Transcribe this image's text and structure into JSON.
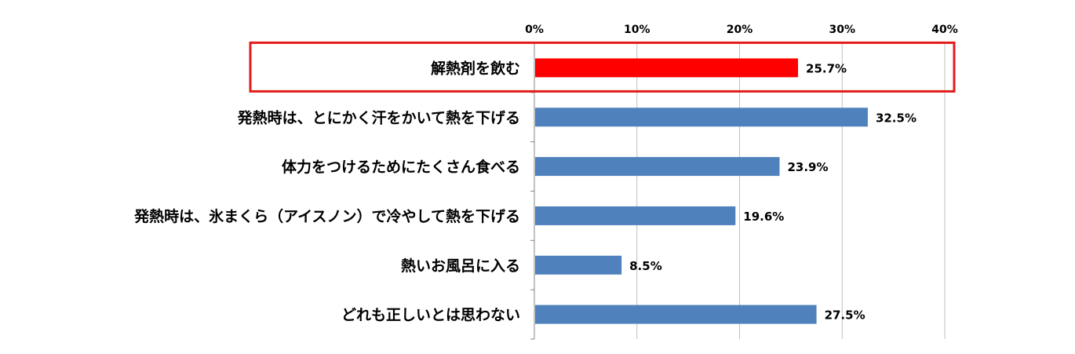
{
  "chart_data": {
    "type": "bar",
    "orientation": "horizontal",
    "title": "",
    "xlabel": "",
    "ylabel": "",
    "xlim": [
      0,
      40
    ],
    "ticks": [
      "0%",
      "10%",
      "20%",
      "30%",
      "40%"
    ],
    "tick_values": [
      0,
      10,
      20,
      30,
      40
    ],
    "grid": true,
    "categories": [
      "解熱剤を飲む",
      "発熱時は、とにかく汗をかいて熱を下げる",
      "体力をつけるためにたくさん食べる",
      "発熱時は、氷まくら（アイスノン）で冷やして熱を下げる",
      "熱いお風呂に入る",
      "どれも正しいとは思わない"
    ],
    "values": [
      25.7,
      32.5,
      23.9,
      19.6,
      8.5,
      27.5
    ],
    "value_labels": [
      "25.7%",
      "32.5%",
      "23.9%",
      "19.6%",
      "8.5%",
      "27.5%"
    ],
    "colors": {
      "highlight": "#ff0000",
      "default": "#4f81bd",
      "highlight_frame": "#e31c1c",
      "grid": "#bfbfbf",
      "axis": "#868686"
    },
    "highlight_index": 0
  }
}
